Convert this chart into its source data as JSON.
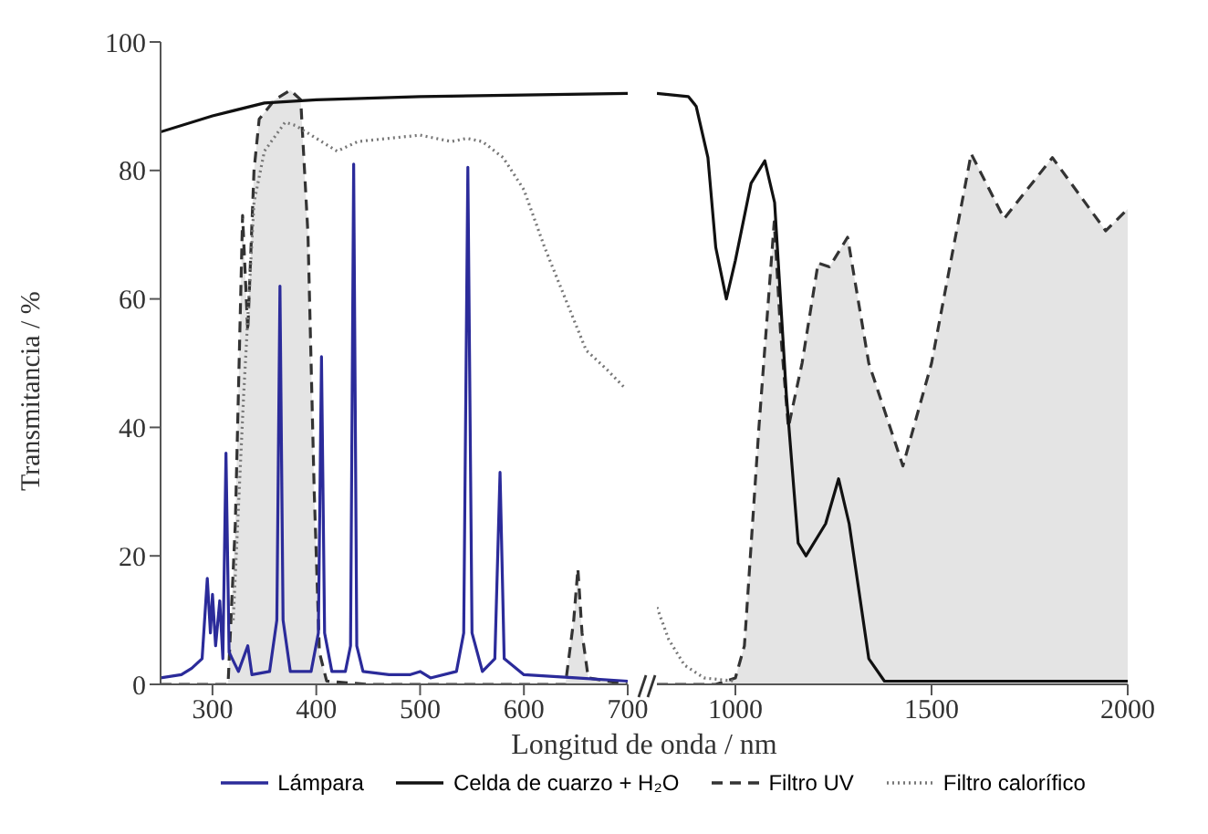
{
  "chart_data": [
    {
      "type": "line",
      "xlabel": "Longitud de onda /  nm",
      "ylabel": "Transmitancia / %",
      "xlim": [
        250,
        700
      ],
      "xticks": [
        300,
        400,
        500,
        600,
        700
      ],
      "ylim": [
        0,
        100
      ],
      "yticks": [
        0,
        20,
        40,
        60,
        80,
        100
      ],
      "legend": "bottom",
      "marker": "none",
      "grid": false,
      "series": [
        {
          "name": "Lámpara",
          "color": "#2b2b9a",
          "line_style": "solid",
          "x": [
            250,
            270,
            280,
            290,
            295,
            298,
            300,
            303,
            307,
            310,
            313,
            316,
            325,
            334,
            338,
            355,
            362,
            365,
            368,
            375,
            395,
            402,
            405,
            408,
            415,
            428,
            433,
            436,
            439,
            445,
            470,
            490,
            500,
            510,
            535,
            542,
            546,
            550,
            560,
            572,
            577,
            581,
            600,
            650,
            700
          ],
          "values": [
            1,
            1.5,
            2.5,
            4,
            16.5,
            8,
            14,
            6,
            13,
            4,
            36,
            5,
            2,
            6,
            1.5,
            2,
            10,
            62,
            10,
            2,
            2,
            8,
            51,
            8,
            2,
            2,
            6,
            81,
            6,
            2,
            1.5,
            1.5,
            2,
            1,
            2,
            8,
            80.5,
            8,
            2,
            4,
            33,
            4,
            1.5,
            1,
            0.5
          ]
        },
        {
          "name": "Celda de cuarzo + H₂O",
          "color": "#111111",
          "line_style": "solid",
          "x": [
            250,
            300,
            350,
            400,
            500,
            700
          ],
          "values": [
            86,
            88.5,
            90.5,
            91,
            91.5,
            92
          ]
        },
        {
          "name": "Filtro UV",
          "color": "#333333",
          "type": "area",
          "line_style": "dashed",
          "x": [
            250,
            315,
            322,
            329,
            334,
            340,
            345,
            360,
            375,
            385,
            392,
            398,
            403,
            410,
            450,
            640,
            648,
            652,
            656,
            662,
            700
          ],
          "values": [
            0,
            0,
            25,
            73,
            55,
            80,
            88,
            91,
            92.5,
            91,
            70,
            30,
            5,
            0.5,
            0,
            0,
            10,
            18,
            8,
            1,
            0
          ]
        },
        {
          "name": "Filtro calorífico",
          "color": "#777777",
          "line_style": "dotted",
          "x": [
            320,
            330,
            340,
            350,
            370,
            380,
            390,
            400,
            420,
            440,
            470,
            500,
            530,
            545,
            560,
            580,
            600,
            620,
            640,
            660,
            680,
            698
          ],
          "values": [
            10,
            45,
            75,
            83,
            87.5,
            87,
            86,
            85,
            83,
            84.5,
            85,
            85.5,
            84.5,
            85,
            84.5,
            82,
            77,
            68,
            60,
            52,
            49,
            46
          ]
        }
      ]
    },
    {
      "type": "line",
      "xlim": [
        800,
        2000
      ],
      "xticks": [
        1000,
        1500,
        2000
      ],
      "ylim": [
        0,
        100
      ],
      "tick_labels": "x",
      "marker": "none",
      "grid": false,
      "series": [
        {
          "color": "#111111",
          "line_style": "solid",
          "x": [
            800,
            880,
            900,
            930,
            950,
            977,
            1000,
            1040,
            1075,
            1100,
            1130,
            1160,
            1180,
            1230,
            1263,
            1290,
            1340,
            1380,
            2000
          ],
          "values": [
            92,
            91.5,
            90,
            82,
            68,
            60,
            66,
            78,
            81.5,
            75,
            45,
            22,
            20,
            25,
            32,
            25,
            4,
            0.5,
            0.5
          ]
        },
        {
          "color": "#333333",
          "type": "area",
          "line_style": "dashed",
          "x": [
            800,
            950,
            1000,
            1023,
            1060,
            1099,
            1115,
            1135,
            1170,
            1211,
            1240,
            1286,
            1340,
            1427,
            1500,
            1601,
            1685,
            1808,
            1944,
            2000
          ],
          "values": [
            0,
            0,
            1,
            6,
            40,
            72,
            55,
            40,
            50,
            65.6,
            65,
            69.6,
            50,
            34,
            50,
            82.6,
            72.5,
            82,
            70.6,
            74
          ]
        },
        {
          "color": "#777777",
          "line_style": "dotted",
          "x": [
            800,
            830,
            870,
            920,
            1000
          ],
          "values": [
            12,
            7,
            3,
            1,
            0.5
          ]
        }
      ]
    }
  ]
}
